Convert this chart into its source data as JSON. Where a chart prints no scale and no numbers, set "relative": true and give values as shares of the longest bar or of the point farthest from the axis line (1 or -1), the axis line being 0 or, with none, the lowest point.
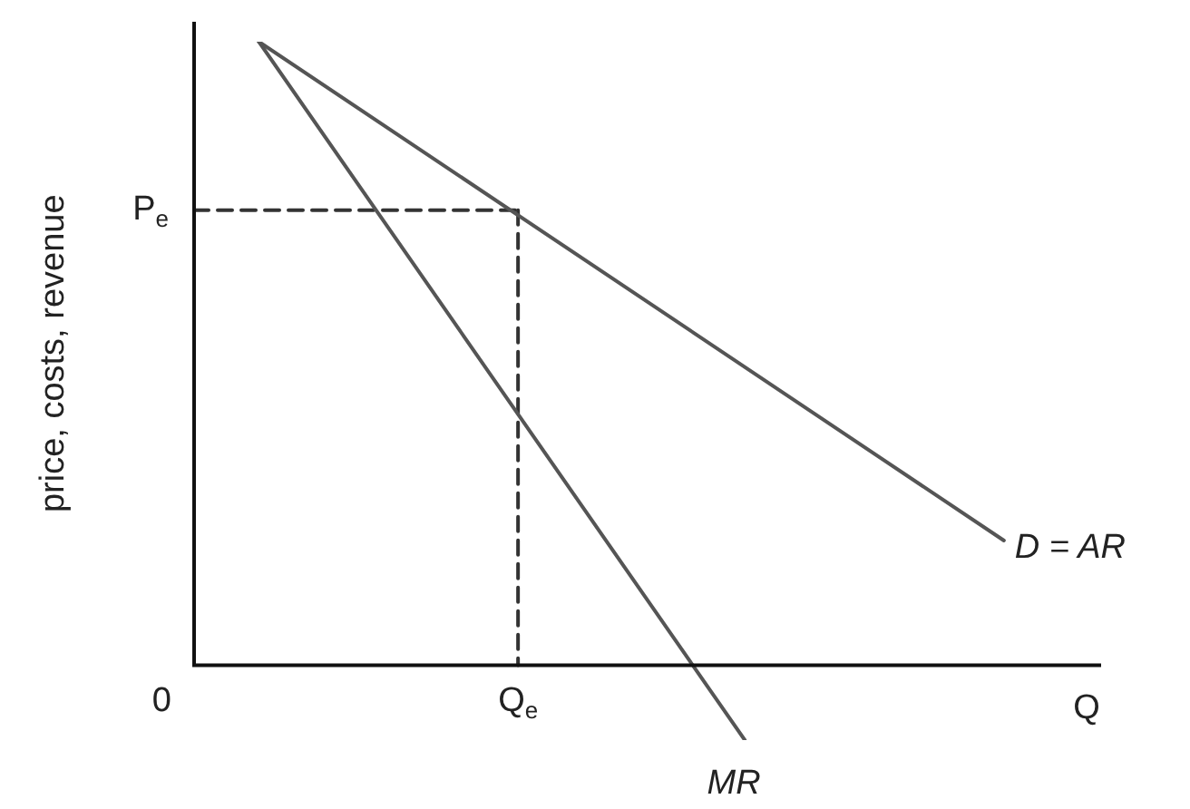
{
  "chart_data": {
    "type": "line",
    "relative": true,
    "ylabel": "price, costs, revenue",
    "xlabel": "Q",
    "legend": false,
    "grid": false,
    "tick_labels": "x",
    "marker": "none",
    "categories": [
      "0",
      null,
      null,
      null,
      null,
      null,
      null,
      null,
      null,
      null,
      null,
      "Q$_{e}$",
      null,
      null,
      null,
      null,
      null,
      null,
      null,
      null,
      null,
      null,
      null,
      null,
      null,
      null,
      null,
      null,
      null,
      null
    ],
    "series": [
      {
        "name": "D = AR",
        "color": "#555555",
        "values": [
          null,
          null,
          null,
          1,
          null,
          null,
          null,
          null,
          null,
          null,
          null,
          null,
          null,
          null,
          null,
          null,
          null,
          null,
          null,
          null,
          null,
          null,
          null,
          null,
          null,
          null,
          0.2,
          null,
          null,
          null
        ]
      },
      {
        "name": "MR",
        "color": "#555555",
        "values": [
          null,
          null,
          null,
          1,
          null,
          null,
          null,
          null,
          null,
          null,
          null,
          null,
          null,
          null,
          null,
          null,
          null,
          null,
          -0.12,
          null,
          null,
          null,
          null,
          null,
          null,
          null,
          null,
          null,
          null,
          null
        ]
      },
      {
        "name": "P$_{e}$",
        "color": "#333333",
        "line_style": "dashed",
        "values": [
          null,
          0.73,
          null,
          null,
          null,
          null,
          null,
          null,
          null,
          null,
          null,
          0.73,
          null,
          null,
          null,
          null,
          null,
          null,
          null,
          null,
          null,
          null,
          null,
          null,
          null,
          null,
          null,
          null,
          null,
          null
        ]
      },
      {
        "color": "#333333",
        "line_style": "dashed",
        "x": [
          "Q$_{e}$",
          "Q$_{e}$"
        ],
        "values": [
          0.73,
          0
        ]
      }
    ]
  }
}
